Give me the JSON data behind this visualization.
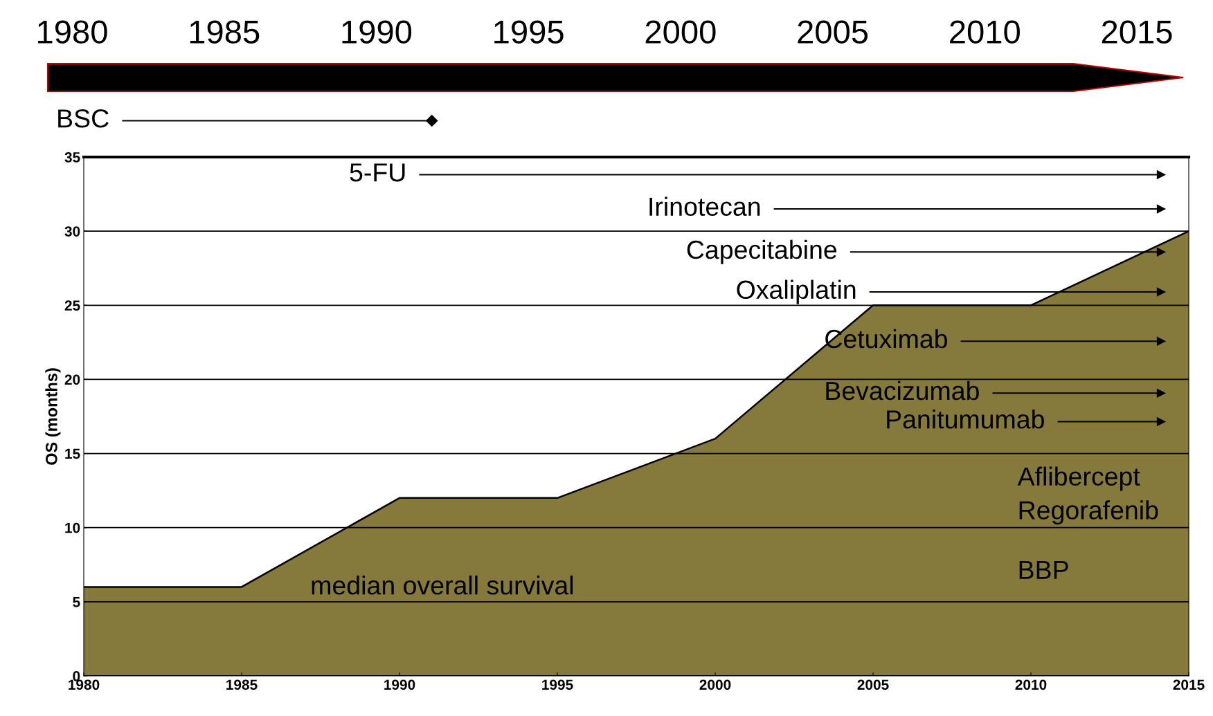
{
  "chart_data": {
    "type": "area",
    "x": [
      1980,
      1985,
      1990,
      1995,
      2000,
      2005,
      2010,
      2015
    ],
    "xlim": [
      1980,
      2015
    ],
    "xticks": [
      1980,
      1985,
      1990,
      1995,
      2000,
      2005,
      2010,
      2015
    ],
    "x2lim": [
      1980,
      2015
    ],
    "x2ticks": [
      1980,
      1985,
      1990,
      1995,
      2000,
      2005,
      2010,
      2015
    ],
    "ylim": [
      0,
      35
    ],
    "yticks": [
      0,
      5,
      10,
      15,
      20,
      25,
      30,
      35
    ],
    "ylabel": "OS (months)",
    "grid": "y",
    "series": [
      {
        "color": "#857a3c",
        "values": [
          6,
          6,
          12,
          12,
          16,
          25,
          25,
          30
        ]
      }
    ],
    "annotations": [
      "BSC",
      "5-FU",
      "Irinotecan",
      "Capecitabine",
      "Oxaliplatin",
      "Cetuximab",
      "Bevacizumab",
      "Panitumumab",
      "Aflibercept",
      "Regorafenib",
      "BBP",
      "median overall survival"
    ]
  }
}
